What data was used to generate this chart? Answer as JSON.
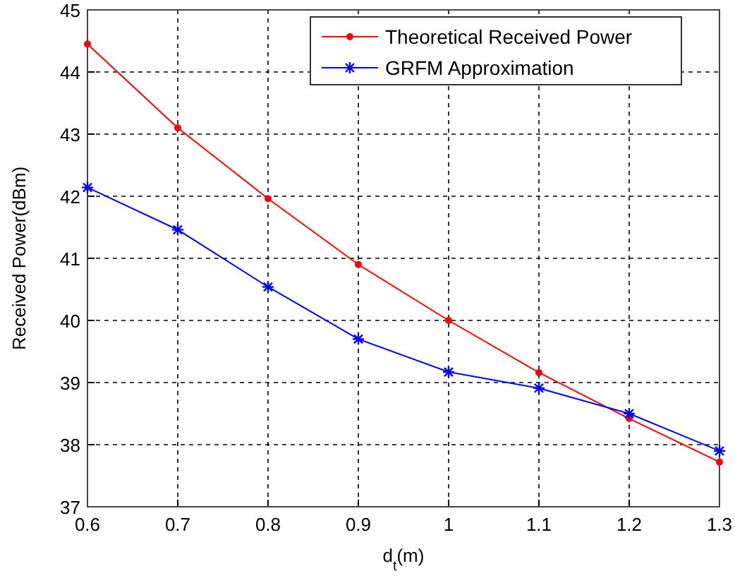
{
  "chart_data": {
    "type": "line",
    "xlabel": "d$_{t}$(m)",
    "ylabel": "Received Power(dBm)",
    "x": [
      0.6,
      0.7,
      0.8,
      0.9,
      1.0,
      1.1,
      1.2,
      1.3
    ],
    "series": [
      {
        "name": "Theoretical Received Power",
        "color": "#ff0000",
        "marker": "circle",
        "values": [
          44.45,
          43.1,
          41.96,
          40.9,
          40.0,
          39.16,
          38.42,
          37.72
        ]
      },
      {
        "name": "GRFM Approximation",
        "color": "#0000ff",
        "marker": "cross",
        "values": [
          42.14,
          41.46,
          40.54,
          39.7,
          39.17,
          38.91,
          38.5,
          37.9
        ]
      }
    ],
    "xlim": [
      0.6,
      1.3
    ],
    "xticks": [
      0.6,
      0.7,
      0.8,
      0.9,
      1,
      1.1,
      1.2,
      1.3
    ],
    "ylim": [
      37,
      45
    ],
    "yticks": [
      37,
      38,
      39,
      40,
      41,
      42,
      43,
      44,
      45
    ],
    "grid": true,
    "legend": "top right",
    "line_style": "solid"
  }
}
